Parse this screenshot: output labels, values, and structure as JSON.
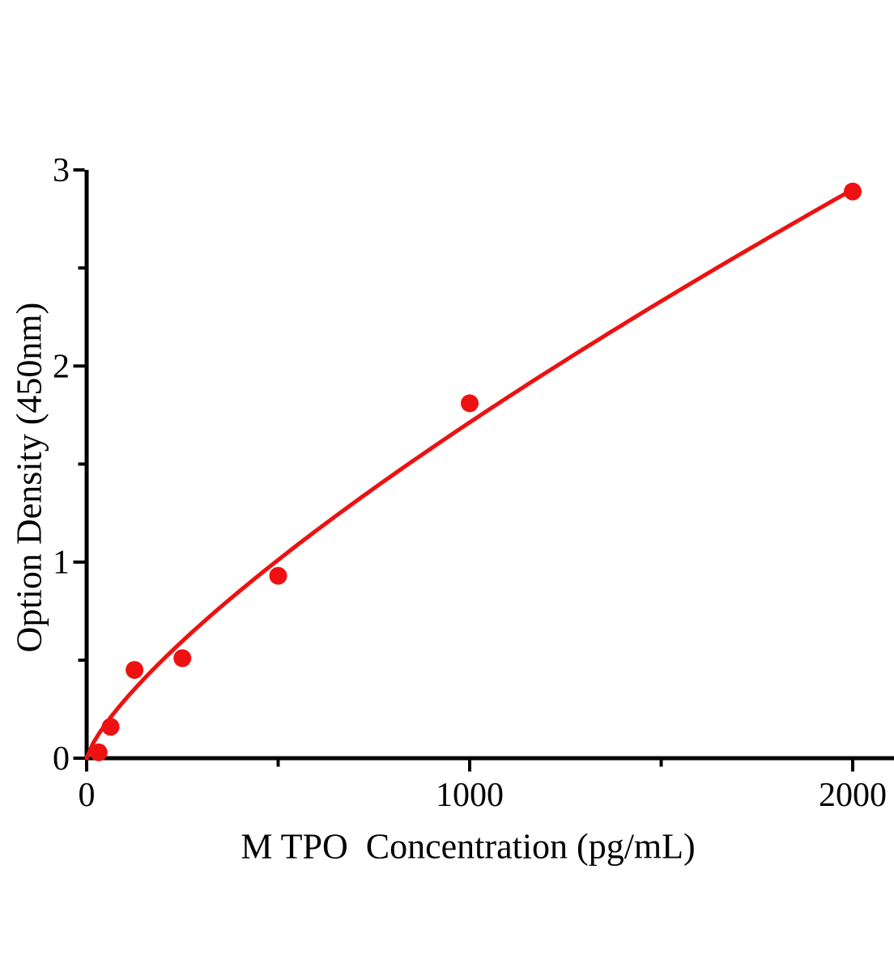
{
  "chart_data": {
    "type": "scatter",
    "title": "",
    "xlabel": "M TPO  Concentration (pg/mL)",
    "ylabel": "Option Density (450nm)",
    "points": [
      {
        "x": 31.25,
        "y": 0.03
      },
      {
        "x": 62.5,
        "y": 0.16
      },
      {
        "x": 125,
        "y": 0.45
      },
      {
        "x": 250,
        "y": 0.51
      },
      {
        "x": 500,
        "y": 0.93
      },
      {
        "x": 1000,
        "y": 1.81
      },
      {
        "x": 2000,
        "y": 2.89
      }
    ],
    "fit_curve": {
      "model": "power",
      "equation": "OD = 2.9 * (C / 2000)^0.76",
      "a": 2.9,
      "b": 0.76,
      "c_ref": 2000,
      "x_start": 0,
      "x_end": 2000
    },
    "x_axis": {
      "min": 0,
      "max": 2110,
      "major_ticks": [
        0,
        1000,
        2000
      ],
      "minor_ticks": [
        500,
        1500
      ],
      "tick_labels": [
        "0",
        "1000",
        "2000"
      ]
    },
    "y_axis": {
      "min": 0,
      "max": 3,
      "major_ticks": [
        0,
        1,
        2,
        3
      ],
      "minor_ticks": [
        0.5,
        1.5,
        2.5
      ],
      "tick_labels": [
        "0",
        "1",
        "2",
        "3"
      ]
    },
    "legend": null,
    "grid": false,
    "marker": {
      "shape": "circle",
      "radius_px": 11
    },
    "colors": {
      "series": "#ee1111",
      "axis": "#000000",
      "background": "#ffffff"
    }
  }
}
